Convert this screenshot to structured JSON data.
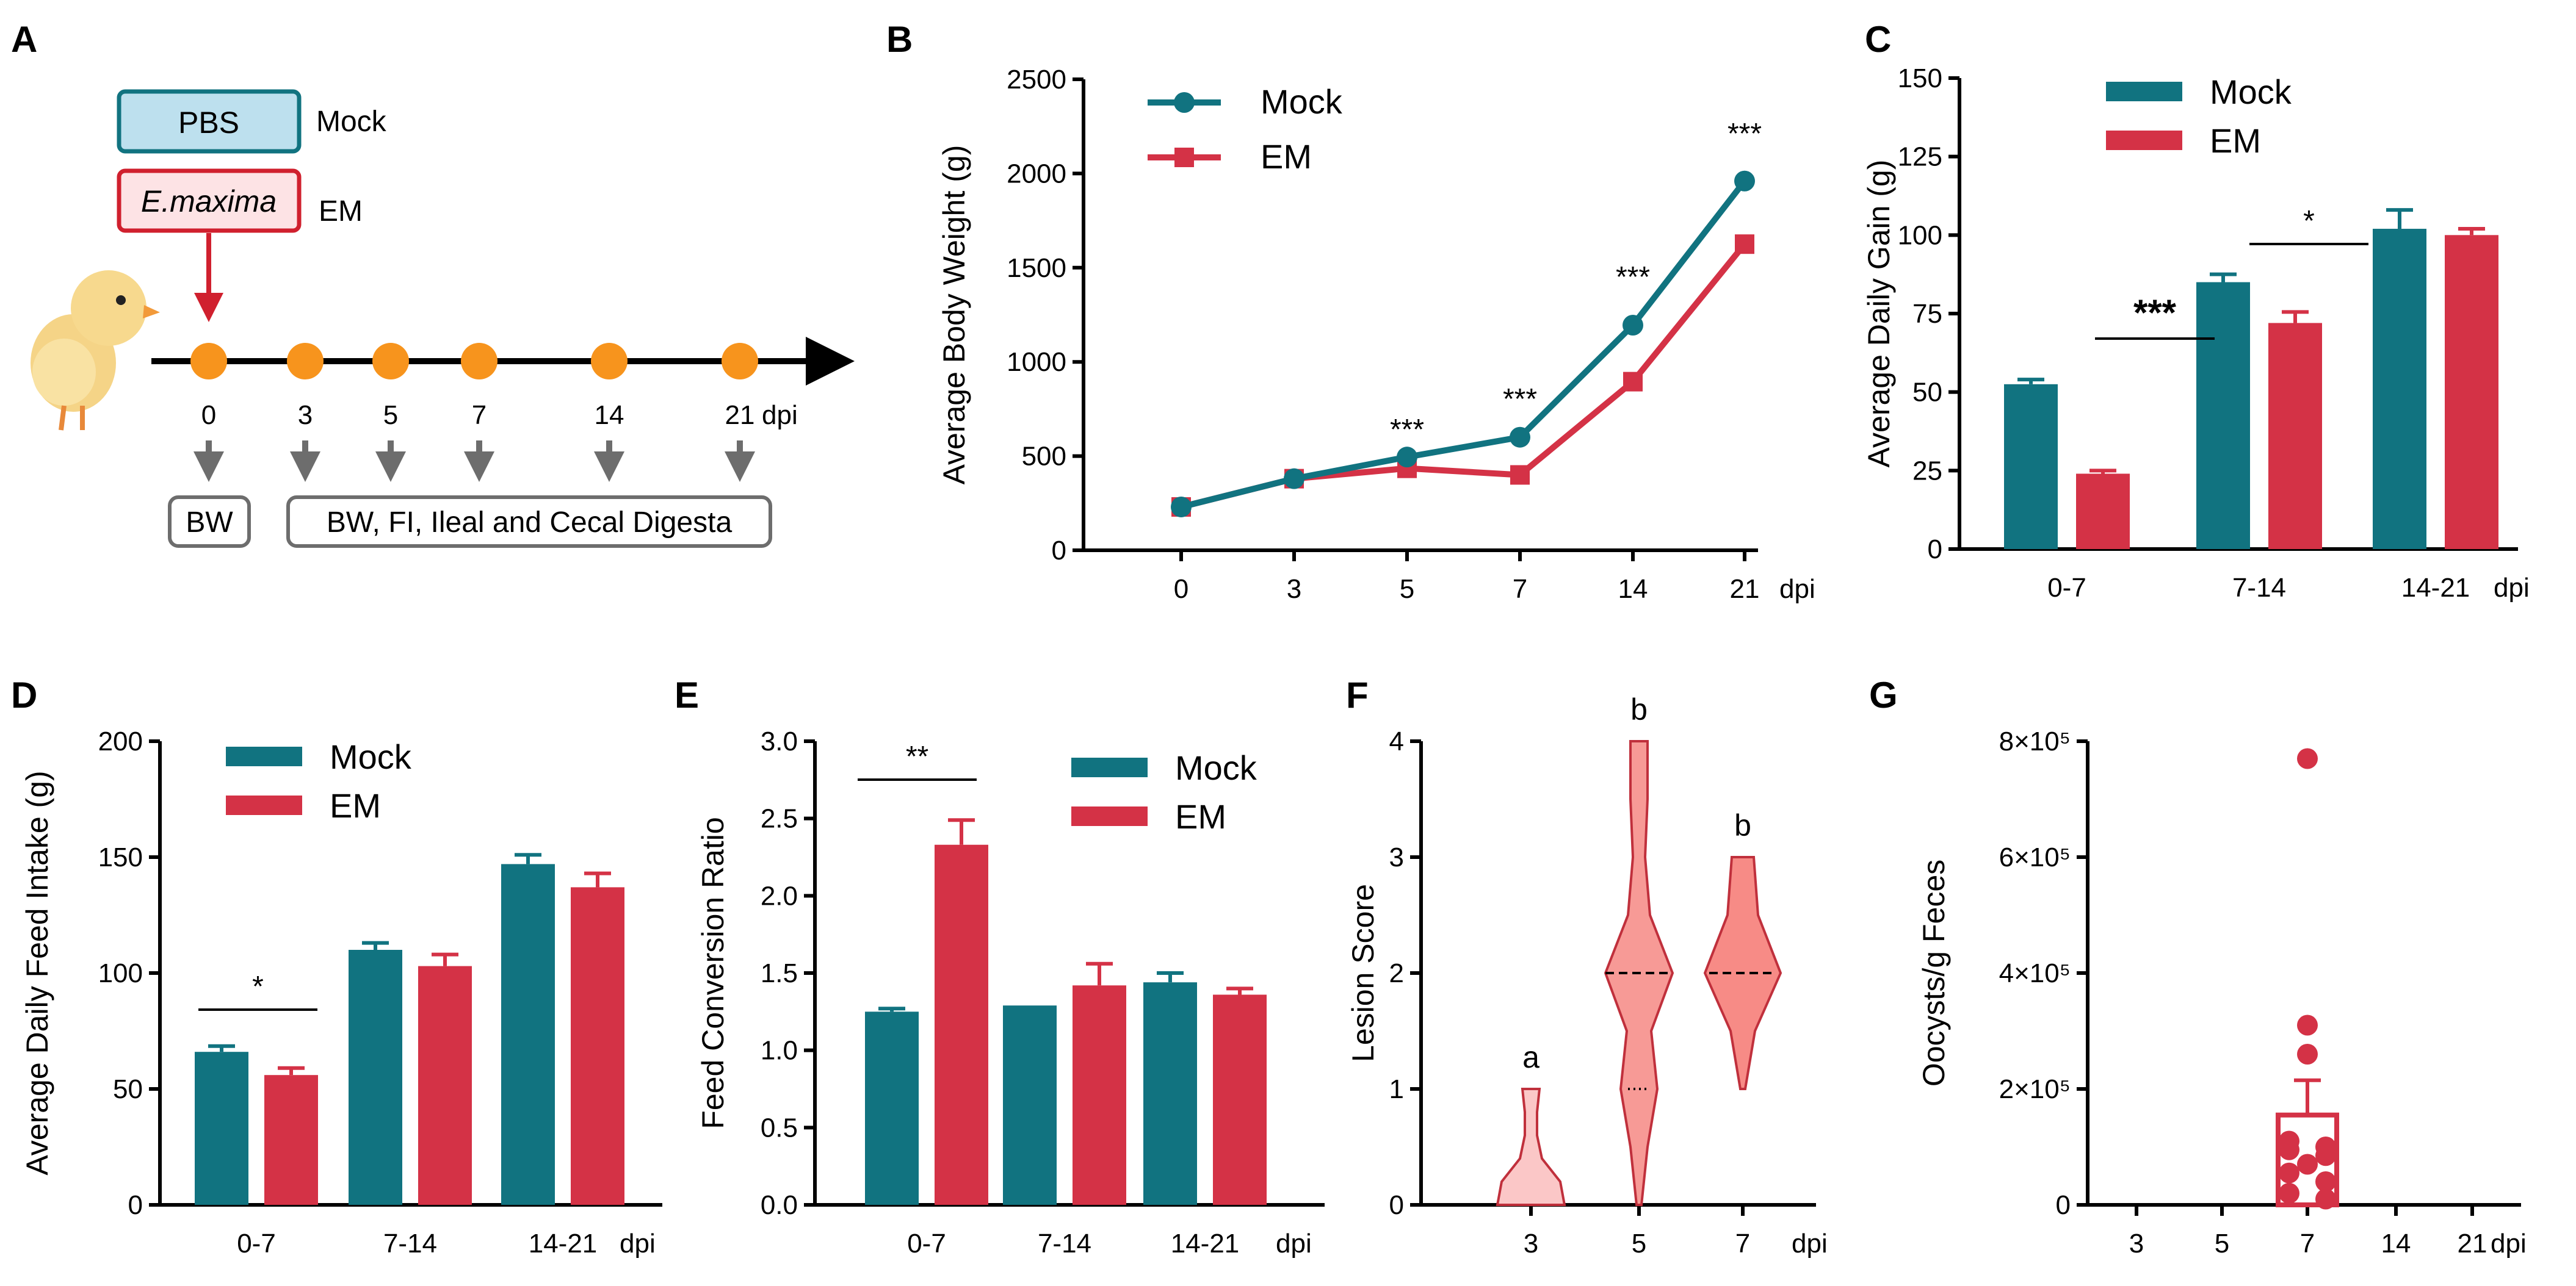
{
  "colors": {
    "mock": "#117380",
    "em": "#d43246",
    "orange": "#f7941d",
    "arrow_red": "#d0202e",
    "gray": "#6d6d6d",
    "pbs_fill": "#bde0ee",
    "em_fill": "#fde3e5"
  },
  "panel_a": {
    "letter": "A",
    "pbs_label": "PBS",
    "mock_label": "Mock",
    "em_box_label": "E.maxima",
    "em_label": "EM",
    "timeline_days": [
      "0",
      "3",
      "5",
      "7",
      "14",
      "21"
    ],
    "dpi_label": "dpi",
    "bw_box": "BW",
    "sampling_box": "BW, FI, Ileal and Cecal Digesta",
    "chick_icon": "chick-icon"
  },
  "panel_b": {
    "letter": "B"
  },
  "panel_c": {
    "letter": "C"
  },
  "panel_d": {
    "letter": "D"
  },
  "panel_e": {
    "letter": "E"
  },
  "panel_f": {
    "letter": "F"
  },
  "panel_g": {
    "letter": "G"
  },
  "chart_data": [
    {
      "id": "B",
      "type": "line",
      "title": "",
      "ylabel": "Average Body Weight (g)",
      "xlabel": "dpi",
      "categories": [
        "0",
        "3",
        "5",
        "7",
        "14",
        "21"
      ],
      "ylim": [
        0,
        2500
      ],
      "yticks": [
        0,
        500,
        1000,
        1500,
        2000,
        2500
      ],
      "series": [
        {
          "name": "Mock",
          "values": [
            230,
            380,
            495,
            600,
            1195,
            1960
          ],
          "errors": [
            20,
            20,
            20,
            20,
            25,
            40
          ]
        },
        {
          "name": "EM",
          "values": [
            230,
            380,
            435,
            400,
            895,
            1625
          ],
          "errors": [
            20,
            20,
            20,
            20,
            20,
            20
          ]
        }
      ],
      "annotations": [
        {
          "category": "5",
          "text": "***"
        },
        {
          "category": "7",
          "text": "***"
        },
        {
          "category": "14",
          "text": "***"
        },
        {
          "category": "21",
          "text": "***"
        }
      ],
      "legend": "top-left"
    },
    {
      "id": "C",
      "type": "bar",
      "title": "",
      "ylabel": "Average Daily Gain (g)",
      "xlabel": "dpi",
      "categories": [
        "0-7",
        "7-14",
        "14-21"
      ],
      "ylim": [
        0,
        150
      ],
      "yticks": [
        0,
        25,
        50,
        75,
        100,
        125,
        150
      ],
      "series": [
        {
          "name": "Mock",
          "values": [
            52.5,
            85,
            102
          ],
          "errors": [
            1.5,
            2.5,
            6
          ]
        },
        {
          "name": "EM",
          "values": [
            24,
            72,
            100
          ],
          "errors": [
            1,
            3.5,
            2
          ]
        }
      ],
      "annotations": [
        {
          "category": "0-7",
          "text": "***"
        },
        {
          "category": "7-14",
          "text": "*"
        }
      ],
      "legend": "top-left"
    },
    {
      "id": "D",
      "type": "bar",
      "title": "",
      "ylabel": "Average Daily Feed Intake (g)",
      "xlabel": "dpi",
      "categories": [
        "0-7",
        "7-14",
        "14-21"
      ],
      "ylim": [
        0,
        200
      ],
      "yticks": [
        0,
        50,
        100,
        150,
        200
      ],
      "series": [
        {
          "name": "Mock",
          "values": [
            66,
            110,
            147
          ],
          "errors": [
            2.5,
            3,
            4
          ]
        },
        {
          "name": "EM",
          "values": [
            56,
            103,
            137
          ],
          "errors": [
            3,
            5,
            6
          ]
        }
      ],
      "annotations": [
        {
          "category": "0-7",
          "text": "*"
        }
      ],
      "legend": "top-left"
    },
    {
      "id": "E",
      "type": "bar",
      "title": "",
      "ylabel": "Feed Conversion Ratio",
      "xlabel": "dpi",
      "categories": [
        "0-7",
        "7-14",
        "14-21"
      ],
      "ylim": [
        0,
        3.0
      ],
      "yticks": [
        "0.0",
        "0.5",
        "1.0",
        "1.5",
        "2.0",
        "2.5",
        "3.0"
      ],
      "series": [
        {
          "name": "Mock",
          "values": [
            1.25,
            1.29,
            1.44
          ],
          "errors": [
            0.02,
            0,
            0.06
          ]
        },
        {
          "name": "EM",
          "values": [
            2.33,
            1.42,
            1.36
          ],
          "errors": [
            0.16,
            0.14,
            0.04
          ]
        }
      ],
      "annotations": [
        {
          "category": "0-7",
          "text": "**"
        }
      ],
      "legend": "top-right"
    },
    {
      "id": "F",
      "type": "violin",
      "title": "",
      "ylabel": "Lesion Score",
      "xlabel": "dpi",
      "categories": [
        "3",
        "5",
        "7"
      ],
      "ylim": [
        0,
        4
      ],
      "yticks": [
        0,
        1,
        2,
        3,
        4
      ],
      "groups": [
        {
          "category": "3",
          "min": 0,
          "max": 1,
          "median": 0,
          "letter": "a"
        },
        {
          "category": "5",
          "min": 0,
          "max": 4,
          "median": 2,
          "q1": 1,
          "letter": "b"
        },
        {
          "category": "7",
          "min": 1,
          "max": 3,
          "median": 2,
          "letter": "b"
        }
      ]
    },
    {
      "id": "G",
      "type": "scatter",
      "title": "",
      "ylabel": "Oocysts/g Feces",
      "xlabel": "dpi",
      "categories": [
        "3",
        "5",
        "7",
        "14",
        "21"
      ],
      "ylim": [
        0,
        800000
      ],
      "yticks": [
        "0",
        "2×10⁵",
        "4×10⁵",
        "6×10⁵",
        "8×10⁵"
      ],
      "bar": {
        "category": "7",
        "mean": 155000,
        "sem": 60000
      },
      "points": [
        {
          "category": "7",
          "values": [
            770000,
            310000,
            260000,
            110000,
            100000,
            95000,
            85000,
            70000,
            55000,
            40000,
            20000,
            10000
          ]
        }
      ]
    }
  ]
}
